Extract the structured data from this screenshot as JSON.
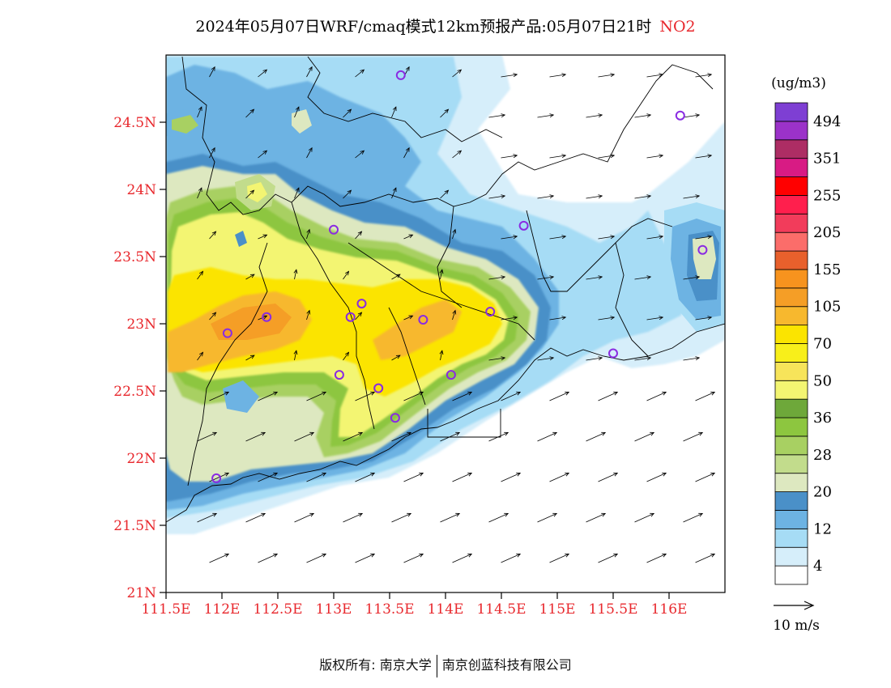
{
  "title": {
    "main": "2024年05月07日WRF/cmaq模式12km预报产品:05月07日21时",
    "pollutant": "NO2"
  },
  "map": {
    "lat_ticks": [
      "24.5N",
      "24N",
      "23.5N",
      "23N",
      "22.5N",
      "22N",
      "21.5N",
      "21N"
    ],
    "lon_ticks": [
      "111.5E",
      "112E",
      "112.5E",
      "113E",
      "113.5E",
      "114E",
      "114.5E",
      "115E",
      "115.5E",
      "116E"
    ],
    "stations": [
      {
        "lon": 113.6,
        "lat": 24.85
      },
      {
        "lon": 116.1,
        "lat": 24.55
      },
      {
        "lon": 113.0,
        "lat": 23.7
      },
      {
        "lon": 114.7,
        "lat": 23.73
      },
      {
        "lon": 116.3,
        "lat": 23.55
      },
      {
        "lon": 113.25,
        "lat": 23.15
      },
      {
        "lon": 112.4,
        "lat": 23.05
      },
      {
        "lon": 113.15,
        "lat": 23.05
      },
      {
        "lon": 113.8,
        "lat": 23.03
      },
      {
        "lon": 114.4,
        "lat": 23.09
      },
      {
        "lon": 112.05,
        "lat": 22.93
      },
      {
        "lon": 115.5,
        "lat": 22.78
      },
      {
        "lon": 113.05,
        "lat": 22.62
      },
      {
        "lon": 114.05,
        "lat": 22.62
      },
      {
        "lon": 113.4,
        "lat": 22.52
      },
      {
        "lon": 113.55,
        "lat": 22.3
      },
      {
        "lon": 111.95,
        "lat": 21.85
      }
    ],
    "station_color": "#8a2be2"
  },
  "colorbar": {
    "unit": "(ug/m3)",
    "colors": [
      "#ffffff",
      "#d6eefa",
      "#a6dcf5",
      "#6db3e3",
      "#4a90c8",
      "#dde8c0",
      "#c2dc8c",
      "#a8d062",
      "#8dc63f",
      "#6ea83a",
      "#f3f572",
      "#f7e45a",
      "#f8ef1a",
      "#fbe400",
      "#f7b82e",
      "#f59e26",
      "#f7931e",
      "#e8602c",
      "#fb6d6a",
      "#f23c5b",
      "#ff1f4d",
      "#ff0000",
      "#d81b84",
      "#ad2d64",
      "#9b32c9",
      "#7e3fd3"
    ],
    "labels": [
      "4",
      "12",
      "20",
      "28",
      "36",
      "50",
      "70",
      "105",
      "155",
      "205",
      "255",
      "351",
      "494"
    ]
  },
  "wind": {
    "reference_label": "10 m/s"
  },
  "footer": {
    "left": "版权所有: 南京大学",
    "right": "南京创蓝科技有限公司"
  }
}
